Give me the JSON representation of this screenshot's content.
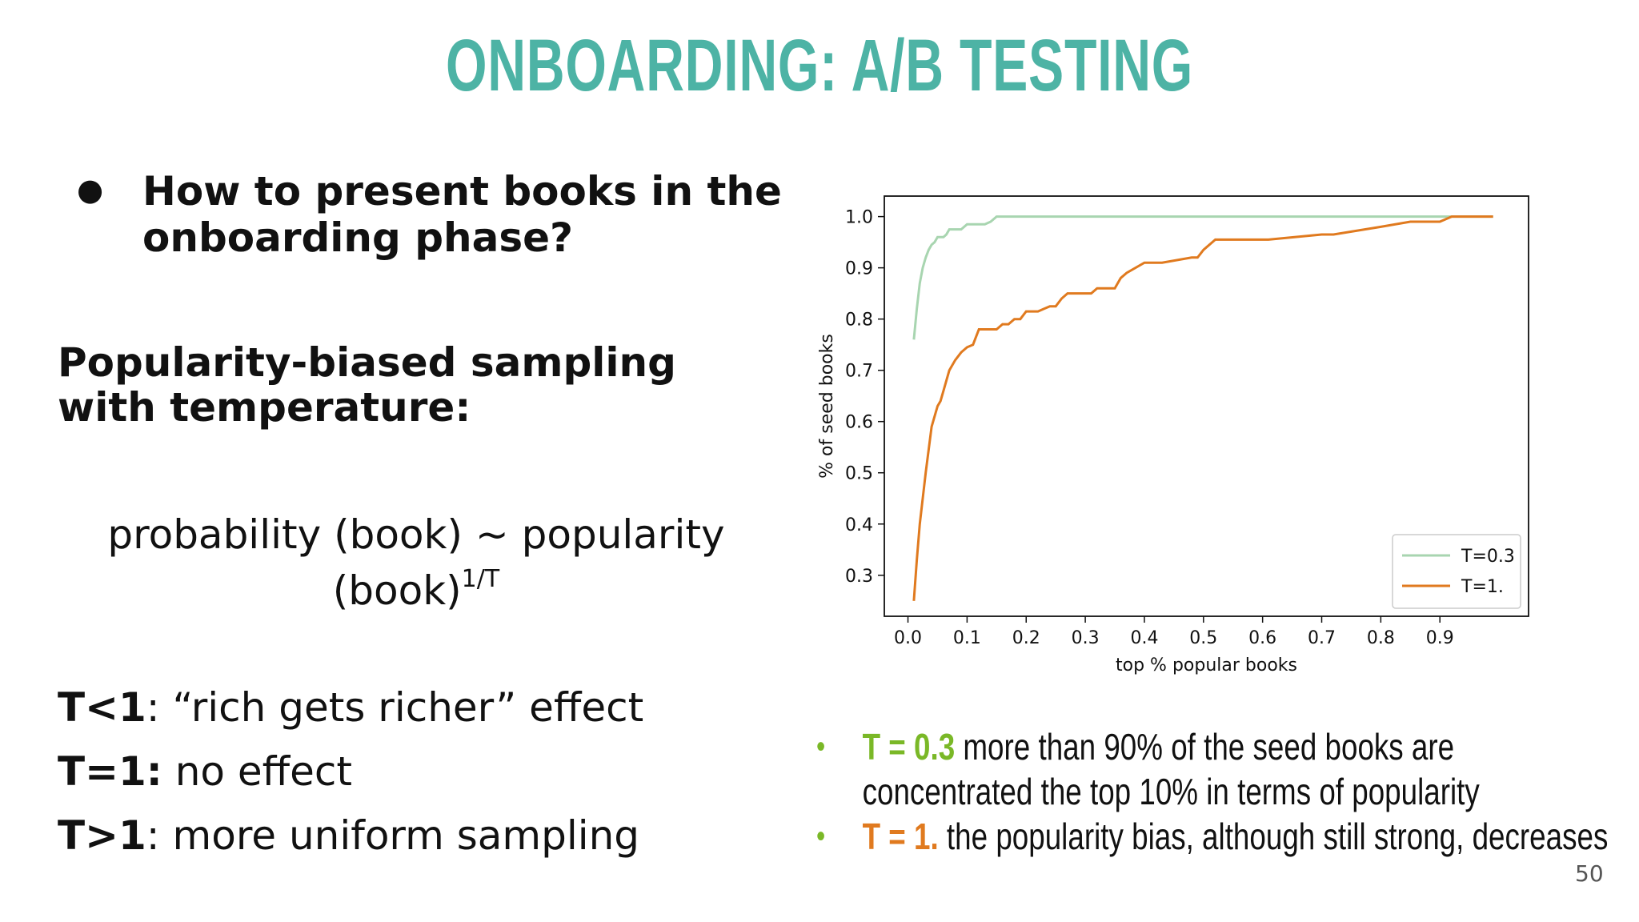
{
  "slide": {
    "title": "ONBOARDING: A/B TESTING",
    "bullet_question": "How to present books in the onboarding phase?",
    "heading": "Popularity-biased sampling with temperature:",
    "formula_main": "probability (book) ~ popularity (book)",
    "formula_exponent": "1/T",
    "temps": [
      {
        "label": "T<1",
        "text": ": “rich gets richer” effect"
      },
      {
        "label": "T=1:",
        "text": " no effect"
      },
      {
        "label": "T>1",
        "text": ": more uniform sampling"
      }
    ],
    "notes": [
      {
        "highlight": "T = 0.3",
        "text": " more than 90% of the seed books are concentrated the top 10% in terms of popularity"
      },
      {
        "highlight": "T = 1.",
        "text": " the popularity bias, although still strong, decreases"
      }
    ],
    "page_number": "50",
    "colors": {
      "title": "#4db3a5",
      "green": "#7ab827",
      "orange": "#e07a1f"
    }
  },
  "chart_data": {
    "type": "line",
    "xlabel": "top % popular books",
    "ylabel": "% of seed books",
    "xlim": [
      -0.04,
      1.05
    ],
    "ylim": [
      0.22,
      1.04
    ],
    "xticks": [
      "0.0",
      "0.1",
      "0.2",
      "0.3",
      "0.4",
      "0.5",
      "0.6",
      "0.7",
      "0.8",
      "0.9"
    ],
    "yticks": [
      "0.3",
      "0.4",
      "0.5",
      "0.6",
      "0.7",
      "0.8",
      "0.9",
      "1.0"
    ],
    "legend_position": "lower-right",
    "grid": false,
    "series": [
      {
        "name": "T=0.3",
        "color": "#a8d5b0",
        "x": [
          0.01,
          0.015,
          0.02,
          0.025,
          0.03,
          0.035,
          0.04,
          0.045,
          0.05,
          0.06,
          0.065,
          0.07,
          0.08,
          0.09,
          0.1,
          0.105,
          0.13,
          0.14,
          0.15,
          0.2,
          0.5,
          0.9,
          0.99
        ],
        "y": [
          0.76,
          0.82,
          0.87,
          0.9,
          0.92,
          0.935,
          0.945,
          0.95,
          0.96,
          0.96,
          0.965,
          0.975,
          0.975,
          0.975,
          0.985,
          0.985,
          0.985,
          0.99,
          1.0,
          1.0,
          1.0,
          1.0,
          1.0
        ]
      },
      {
        "name": "T=1.",
        "color": "#e07a1f",
        "x": [
          0.01,
          0.015,
          0.02,
          0.03,
          0.04,
          0.05,
          0.055,
          0.06,
          0.07,
          0.08,
          0.09,
          0.1,
          0.11,
          0.12,
          0.13,
          0.14,
          0.15,
          0.16,
          0.17,
          0.18,
          0.19,
          0.2,
          0.21,
          0.22,
          0.23,
          0.24,
          0.25,
          0.26,
          0.27,
          0.3,
          0.31,
          0.32,
          0.35,
          0.36,
          0.37,
          0.4,
          0.42,
          0.43,
          0.48,
          0.49,
          0.5,
          0.52,
          0.6,
          0.61,
          0.7,
          0.72,
          0.8,
          0.85,
          0.86,
          0.9,
          0.92,
          0.93,
          0.99
        ],
        "y": [
          0.25,
          0.33,
          0.4,
          0.5,
          0.59,
          0.63,
          0.64,
          0.66,
          0.7,
          0.72,
          0.735,
          0.745,
          0.75,
          0.78,
          0.78,
          0.78,
          0.78,
          0.79,
          0.79,
          0.8,
          0.8,
          0.815,
          0.815,
          0.815,
          0.82,
          0.825,
          0.825,
          0.84,
          0.85,
          0.85,
          0.85,
          0.86,
          0.86,
          0.88,
          0.89,
          0.91,
          0.91,
          0.91,
          0.92,
          0.92,
          0.935,
          0.955,
          0.955,
          0.955,
          0.965,
          0.965,
          0.98,
          0.99,
          0.99,
          0.99,
          1.0,
          1.0,
          1.0
        ]
      }
    ]
  }
}
